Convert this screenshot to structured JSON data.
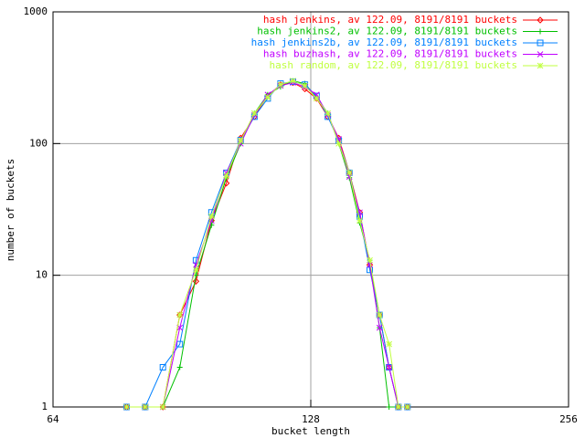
{
  "chart_data": {
    "type": "line",
    "x_label": "bucket length",
    "y_label": "number of buckets",
    "xscale": "log",
    "yscale": "log",
    "grid": true,
    "legend": "top-right",
    "xlim": [
      64,
      256
    ],
    "xticks": [
      64,
      128,
      256
    ],
    "ylim": [
      1,
      1000
    ],
    "yticks": [
      1,
      10,
      100,
      1000
    ],
    "x": [
      78,
      82,
      86,
      90,
      94,
      98,
      102,
      106,
      110,
      114,
      118,
      122,
      126,
      130,
      134,
      138,
      142,
      146,
      150,
      154,
      158,
      162,
      166
    ],
    "series": [
      {
        "name": "hash jenkins, av 122.09, 8191/8191 buckets",
        "color": "#ff0000",
        "marker": "diamond",
        "values": [
          1,
          1,
          1,
          5,
          9,
          26,
          50,
          110,
          160,
          230,
          280,
          290,
          260,
          220,
          160,
          110,
          60,
          30,
          12,
          5,
          2,
          1,
          1
        ]
      },
      {
        "name": "hash jenkins2, av 122.09, 8191/8191 buckets",
        "color": "#00c000",
        "marker": "plus",
        "values": [
          1,
          1,
          1,
          2,
          10,
          24,
          55,
          100,
          170,
          235,
          270,
          300,
          285,
          225,
          170,
          100,
          55,
          25,
          13,
          4,
          1,
          1,
          1
        ]
      },
      {
        "name": "hash jenkins2b, av 122.09, 8191/8191 buckets",
        "color": "#0080ff",
        "marker": "square",
        "values": [
          1,
          1,
          2,
          3,
          13,
          30,
          60,
          106,
          160,
          220,
          285,
          295,
          280,
          230,
          160,
          105,
          60,
          28,
          11,
          5,
          2,
          1,
          1
        ]
      },
      {
        "name": "hash buzhash, av 122.09, 8191/8191 buckets",
        "color": "#c000ff",
        "marker": "cross",
        "values": [
          1,
          1,
          1,
          4,
          12,
          26,
          60,
          100,
          165,
          235,
          275,
          290,
          270,
          235,
          165,
          108,
          56,
          30,
          12,
          4,
          2,
          1,
          1
        ]
      },
      {
        "name": "hash random, av 122.09, 8191/8191 buckets",
        "color": "#c0ff40",
        "marker": "star",
        "values": [
          1,
          1,
          1,
          5,
          11,
          28,
          57,
          105,
          170,
          225,
          280,
          300,
          275,
          220,
          170,
          100,
          60,
          26,
          13,
          5,
          3,
          1,
          1
        ]
      }
    ]
  }
}
